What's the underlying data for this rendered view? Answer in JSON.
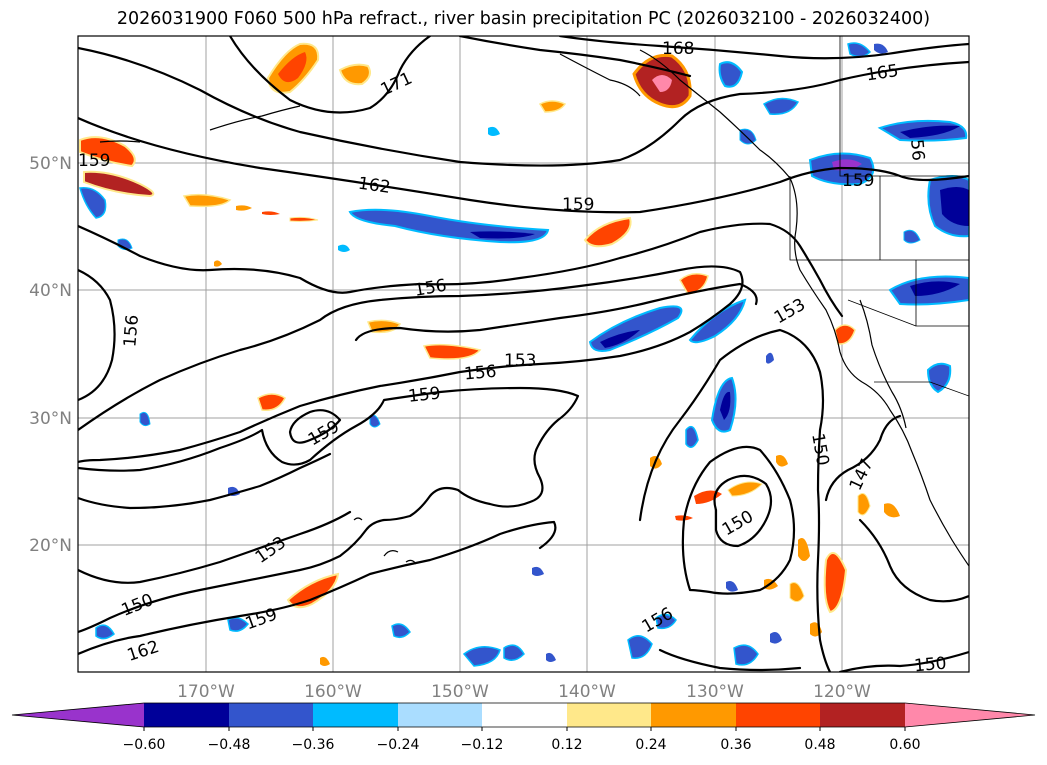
{
  "title": "2026031900 F060 500 hPa refract., river basin precipitation PC (2026032100 - 2026032400)",
  "map": {
    "lat_labels": [
      "50°N",
      "40°N",
      "30°N",
      "20°N"
    ],
    "lon_labels": [
      "170°W",
      "160°W",
      "150°W",
      "140°W",
      "130°W",
      "120°W"
    ],
    "contour_labels": [
      "171",
      "168",
      "165",
      "159",
      "162",
      "159",
      "56",
      "159",
      "156",
      "156",
      "153",
      "153",
      "156",
      "159",
      "159",
      "150",
      "147",
      "153",
      "150",
      "159",
      "150",
      "162",
      "156",
      "150"
    ]
  },
  "colorbar": {
    "colors": {
      "extend_low": "#9933cc",
      "lt_-0.48": "#000099",
      "lt_-0.36": "#3355cc",
      "lt_-0.24": "#00bbff",
      "lt_-0.12": "#aaddff",
      "neutral": "#ffffff",
      "lt_0.24": "#ffe88a",
      "lt_0.36": "#ff9900",
      "lt_0.48": "#ff4400",
      "lt_0.60": "#b22222",
      "extend_high": "#ff88aa"
    },
    "tick_labels": [
      "−0.60",
      "−0.48",
      "−0.36",
      "−0.24",
      "−0.12",
      "0.12",
      "0.24",
      "0.36",
      "0.48",
      "0.60"
    ]
  }
}
